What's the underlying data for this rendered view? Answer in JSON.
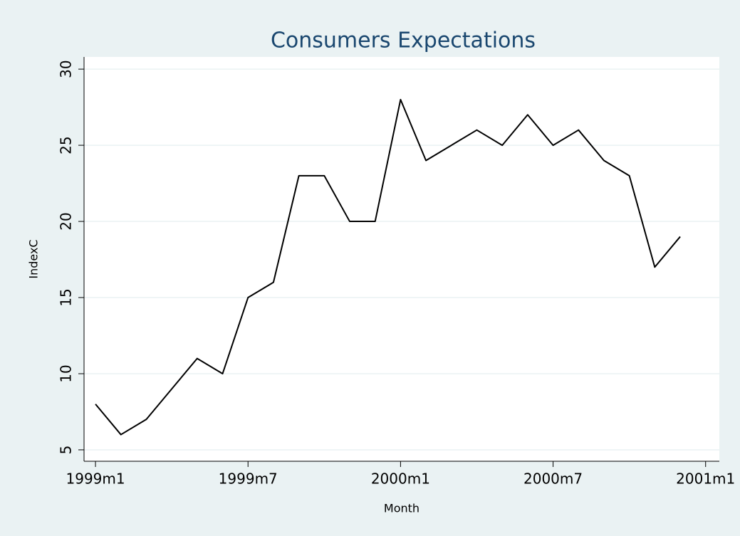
{
  "chart_data": {
    "type": "line",
    "title": "Consumers Expectations",
    "x_label": "Month",
    "y_label": "IndexC",
    "x": [
      0,
      1,
      2,
      3,
      4,
      5,
      6,
      7,
      8,
      9,
      10,
      11,
      12,
      13,
      14,
      15,
      16,
      17,
      18,
      19,
      20,
      21,
      22,
      23
    ],
    "series": [
      {
        "color": "#000000",
        "values": [
          8,
          6,
          7,
          9,
          11,
          10,
          15,
          16,
          23,
          23,
          20,
          20,
          28,
          24,
          25,
          26,
          25,
          27,
          25,
          26,
          24,
          23,
          17,
          19
        ]
      }
    ],
    "xlim": [
      -0.45,
      24.54
    ],
    "xticks": [
      {
        "value": 0,
        "label": "1999m1"
      },
      {
        "value": 6,
        "label": "1999m7"
      },
      {
        "value": 12,
        "label": "2000m1"
      },
      {
        "value": 18,
        "label": "2000m7"
      },
      {
        "value": 24,
        "label": "2001m1"
      }
    ],
    "ylim": [
      4.25,
      30.8
    ],
    "yticks": [
      5,
      10,
      15,
      20,
      25,
      30
    ],
    "grid": true
  }
}
